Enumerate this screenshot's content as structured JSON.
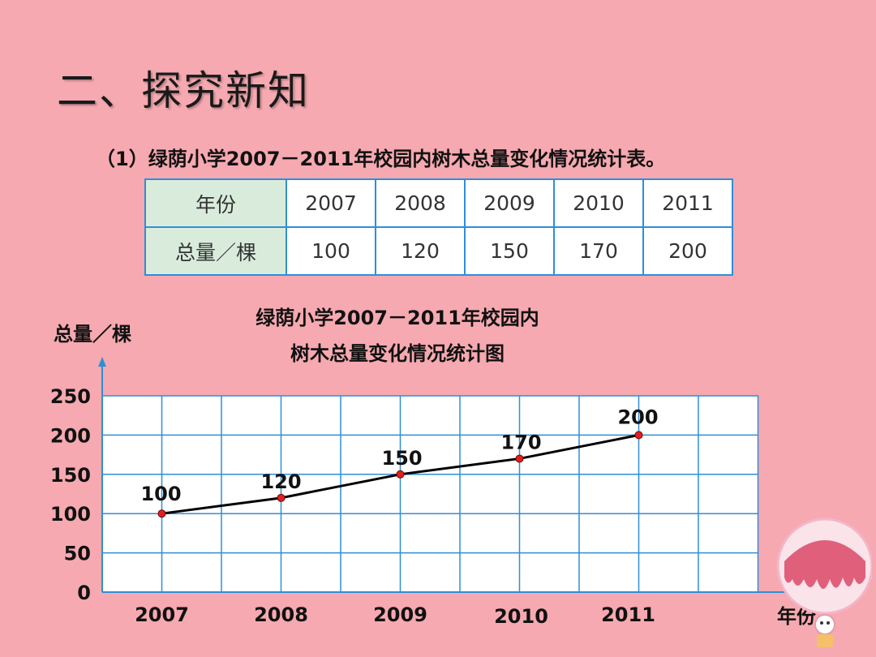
{
  "heading": "二、探究新知",
  "subtitle": "（1）绿荫小学2007－2011年校园内树木总量变化情况统计表。",
  "table": {
    "row1_header": "年份",
    "row2_header": "总量／棵",
    "years": [
      "2007",
      "2008",
      "2009",
      "2010",
      "2011"
    ],
    "totals": [
      "100",
      "120",
      "150",
      "170",
      "200"
    ]
  },
  "chart_data": {
    "type": "line",
    "title_line1": "绿荫小学2007－2011年校园内",
    "title_line2": "树木总量变化情况统计图",
    "xlabel": "年份",
    "ylabel": "总量／棵",
    "categories": [
      "2007",
      "2008",
      "2009",
      "2010",
      "2011"
    ],
    "values": [
      100,
      120,
      150,
      170,
      200
    ],
    "data_labels": [
      "100",
      "120",
      "150",
      "170",
      "200"
    ],
    "yticks": [
      0,
      50,
      100,
      150,
      200,
      250
    ],
    "ylim": [
      0,
      250
    ],
    "grid": true,
    "colors": {
      "grid": "#2e8fd8",
      "line": "#000000",
      "marker": "#e02020",
      "axis": "#2e8fd8"
    }
  }
}
